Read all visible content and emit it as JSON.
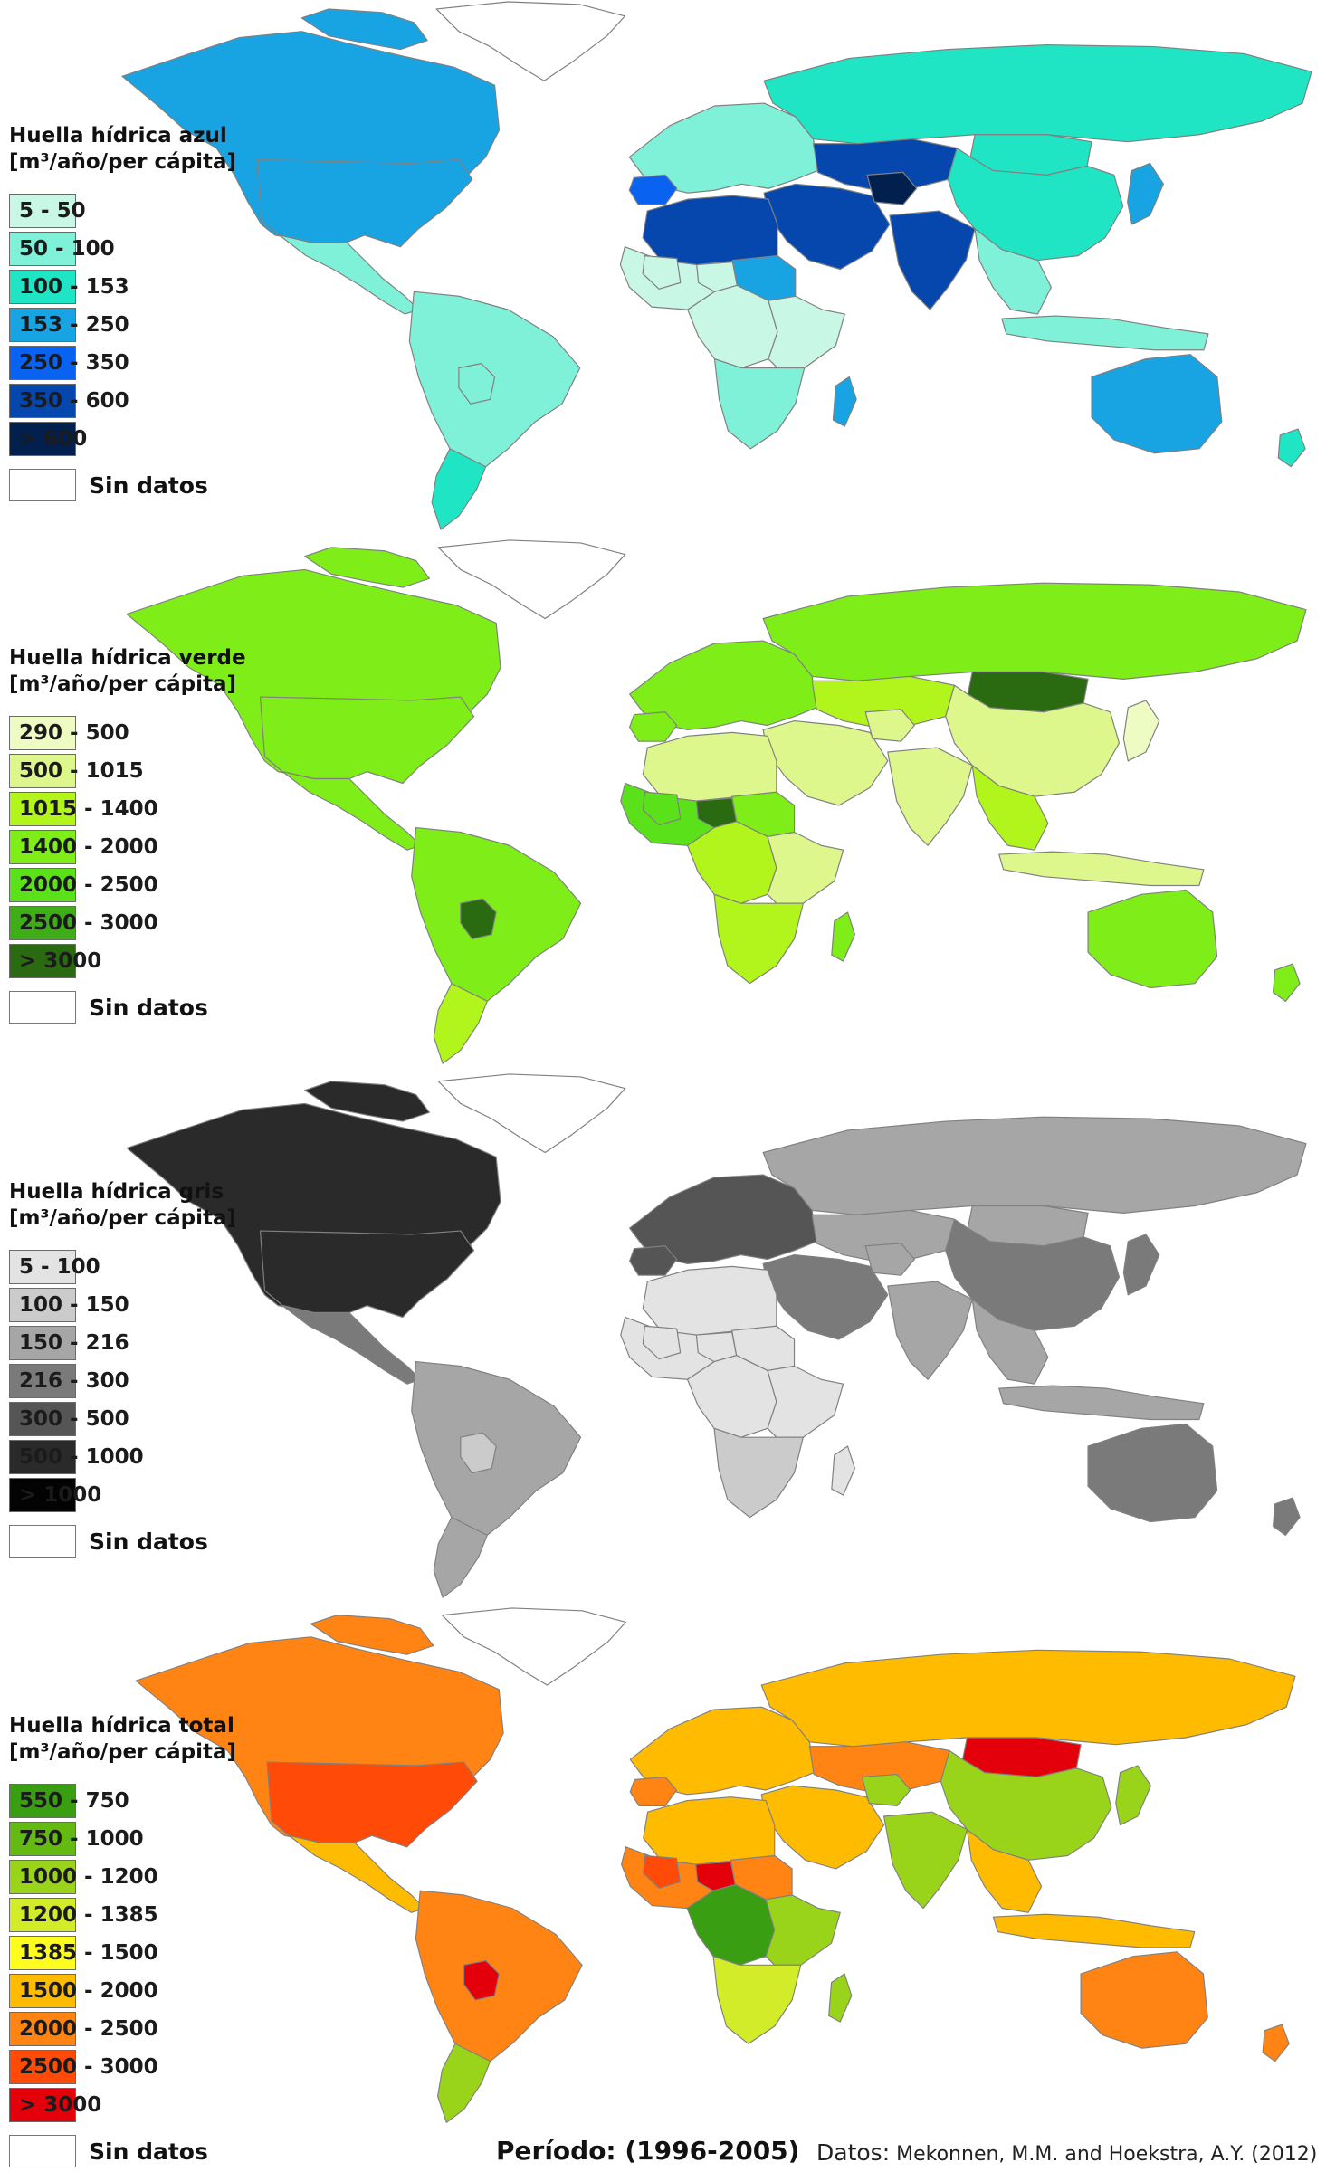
{
  "maps": [
    {
      "id": "azul",
      "title_line1": "Huella hídrica azul",
      "title_line2": "[m³/año/per cápita]",
      "legend": [
        {
          "label": "5 - 50",
          "color": "#c8f7e6"
        },
        {
          "label": "50 - 100",
          "color": "#7ff1d9"
        },
        {
          "label": "100 - 153",
          "color": "#1fe5c5"
        },
        {
          "label": "153 - 250",
          "color": "#18a3e3"
        },
        {
          "label": "250 - 350",
          "color": "#0a62f0"
        },
        {
          "label": "350 - 600",
          "color": "#0647ad"
        },
        {
          "label": "> 600",
          "color": "#02204d"
        }
      ],
      "nodata_label": "Sin datos"
    },
    {
      "id": "verde",
      "title_line1": "Huella hídrica verde",
      "title_line2": "[m³/año/per cápita]",
      "legend": [
        {
          "label": "290 - 500",
          "color": "#eefcc4"
        },
        {
          "label": "500 - 1015",
          "color": "#ddf78c"
        },
        {
          "label": "1015 - 1400",
          "color": "#b2f51c"
        },
        {
          "label": "1400 - 2000",
          "color": "#7eed18"
        },
        {
          "label": "2000 - 2500",
          "color": "#5be11a"
        },
        {
          "label": "2500 - 3000",
          "color": "#3fad18"
        },
        {
          "label": "> 3000",
          "color": "#2a6a10"
        }
      ],
      "nodata_label": "Sin datos"
    },
    {
      "id": "gris",
      "title_line1": "Huella hídrica gris",
      "title_line2": "[m³/año/per cápita]",
      "legend": [
        {
          "label": "5 - 100",
          "color": "#e3e3e3"
        },
        {
          "label": "100 - 150",
          "color": "#cbcbcb"
        },
        {
          "label": "150 - 216",
          "color": "#a6a6a6"
        },
        {
          "label": "216 - 300",
          "color": "#7a7a7a"
        },
        {
          "label": "300 - 500",
          "color": "#555555"
        },
        {
          "label": "500 - 1000",
          "color": "#2a2a2a"
        },
        {
          "label": "> 1000",
          "color": "#030303"
        }
      ],
      "nodata_label": "Sin datos"
    },
    {
      "id": "total",
      "title_line1": "Huella hídrica total",
      "title_line2": "[m³/año/per cápita]",
      "legend": [
        {
          "label": "550 - 750",
          "color": "#3a9e12"
        },
        {
          "label": "750 - 1000",
          "color": "#64ba12"
        },
        {
          "label": "1000 - 1200",
          "color": "#9ad41a"
        },
        {
          "label": "1200 - 1385",
          "color": "#d2ec2a"
        },
        {
          "label": "1385 - 1500",
          "color": "#fffc20"
        },
        {
          "label": "1500 - 2000",
          "color": "#ffbb00"
        },
        {
          "label": "2000 - 2500",
          "color": "#ff8414"
        },
        {
          "label": "2500 - 3000",
          "color": "#ff4a08"
        },
        {
          "label": "> 3000",
          "color": "#e3000b"
        }
      ],
      "nodata_label": "Sin datos"
    }
  ],
  "region_colors": {
    "azul": {
      "north_america": "#18a3e3",
      "greenland": "#ffffff",
      "arctic_islands": "#18a3e3",
      "central_america": "#7ff1d9",
      "south_america": "#7ff1d9",
      "patagonia": "#1fe5c5",
      "europe": "#7ff1d9",
      "iberia": "#0a62f0",
      "russia": "#1fe5c5",
      "central_asia": "#0647ad",
      "middle_east": "#0647ad",
      "afghanistan": "#02204d",
      "north_africa": "#0647ad",
      "sahel": "#18a3e3",
      "west_africa": "#c8f7e6",
      "central_africa": "#c8f7e6",
      "east_africa": "#c8f7e6",
      "southern_africa": "#7ff1d9",
      "madagascar": "#18a3e3",
      "india": "#0647ad",
      "china": "#1fe5c5",
      "southeast_asia": "#7ff1d9",
      "indonesia": "#7ff1d9",
      "japan": "#18a3e3",
      "australia": "#18a3e3",
      "new_zealand": "#1fe5c5",
      "mongolia": "#1fe5c5"
    },
    "verde": {
      "north_america": "#7eed18",
      "greenland": "#ffffff",
      "arctic_islands": "#7eed18",
      "central_america": "#7eed18",
      "south_america": "#7eed18",
      "patagonia": "#b2f51c",
      "europe": "#7eed18",
      "iberia": "#7eed18",
      "russia": "#7eed18",
      "central_asia": "#b2f51c",
      "middle_east": "#ddf78c",
      "afghanistan": "#ddf78c",
      "north_africa": "#ddf78c",
      "sahel": "#7eed18",
      "west_africa": "#5be11a",
      "central_africa": "#b2f51c",
      "east_africa": "#ddf78c",
      "southern_africa": "#b2f51c",
      "madagascar": "#7eed18",
      "india": "#ddf78c",
      "china": "#ddf78c",
      "southeast_asia": "#b2f51c",
      "indonesia": "#ddf78c",
      "japan": "#eefcc4",
      "australia": "#7eed18",
      "new_zealand": "#7eed18",
      "mongolia": "#2a6a10"
    },
    "gris": {
      "north_america": "#2a2a2a",
      "greenland": "#ffffff",
      "arctic_islands": "#2a2a2a",
      "central_america": "#7a7a7a",
      "south_america": "#a6a6a6",
      "patagonia": "#a6a6a6",
      "europe": "#555555",
      "iberia": "#555555",
      "russia": "#a6a6a6",
      "central_asia": "#a6a6a6",
      "middle_east": "#7a7a7a",
      "afghanistan": "#a6a6a6",
      "north_africa": "#e3e3e3",
      "sahel": "#e3e3e3",
      "west_africa": "#e3e3e3",
      "central_africa": "#e3e3e3",
      "east_africa": "#e3e3e3",
      "southern_africa": "#cbcbcb",
      "madagascar": "#e3e3e3",
      "india": "#a6a6a6",
      "china": "#7a7a7a",
      "southeast_asia": "#a6a6a6",
      "indonesia": "#a6a6a6",
      "japan": "#7a7a7a",
      "australia": "#7a7a7a",
      "new_zealand": "#7a7a7a",
      "mongolia": "#a6a6a6"
    },
    "total": {
      "north_america": "#ff8414",
      "greenland": "#ffffff",
      "arctic_islands": "#ff8414",
      "central_america": "#ffbb00",
      "south_america": "#ff8414",
      "patagonia": "#9ad41a",
      "europe": "#ffbb00",
      "iberia": "#ff8414",
      "russia": "#ffbb00",
      "central_asia": "#ff8414",
      "middle_east": "#ffbb00",
      "afghanistan": "#9ad41a",
      "north_africa": "#ffbb00",
      "sahel": "#ff8414",
      "west_africa": "#ff8414",
      "central_africa": "#3a9e12",
      "east_africa": "#9ad41a",
      "southern_africa": "#d2ec2a",
      "madagascar": "#9ad41a",
      "india": "#9ad41a",
      "china": "#9ad41a",
      "southeast_asia": "#ffbb00",
      "indonesia": "#ffbb00",
      "japan": "#9ad41a",
      "australia": "#ff8414",
      "new_zealand": "#ff8414",
      "mongolia": "#e3000b"
    }
  },
  "accent_colors": {
    "azul": {
      "usa": "#18a3e3",
      "bolivia": "#7ff1d9",
      "niger": "#c8f7e6",
      "mali": "#c8f7e6"
    },
    "verde": {
      "usa": "#7eed18",
      "bolivia": "#2a6a10",
      "niger": "#2a6a10",
      "mali": "#5be11a"
    },
    "gris": {
      "usa": "#2a2a2a",
      "bolivia": "#cbcbcb",
      "niger": "#e3e3e3",
      "mali": "#e3e3e3"
    },
    "total": {
      "usa": "#ff4a08",
      "bolivia": "#e3000b",
      "niger": "#e3000b",
      "mali": "#ff4a08"
    }
  },
  "footer": {
    "period": "Período: (1996-2005)",
    "source_label": "Datos:",
    "source_text": " Mekonnen, M.M. and Hoekstra, A.Y. (2012)"
  }
}
